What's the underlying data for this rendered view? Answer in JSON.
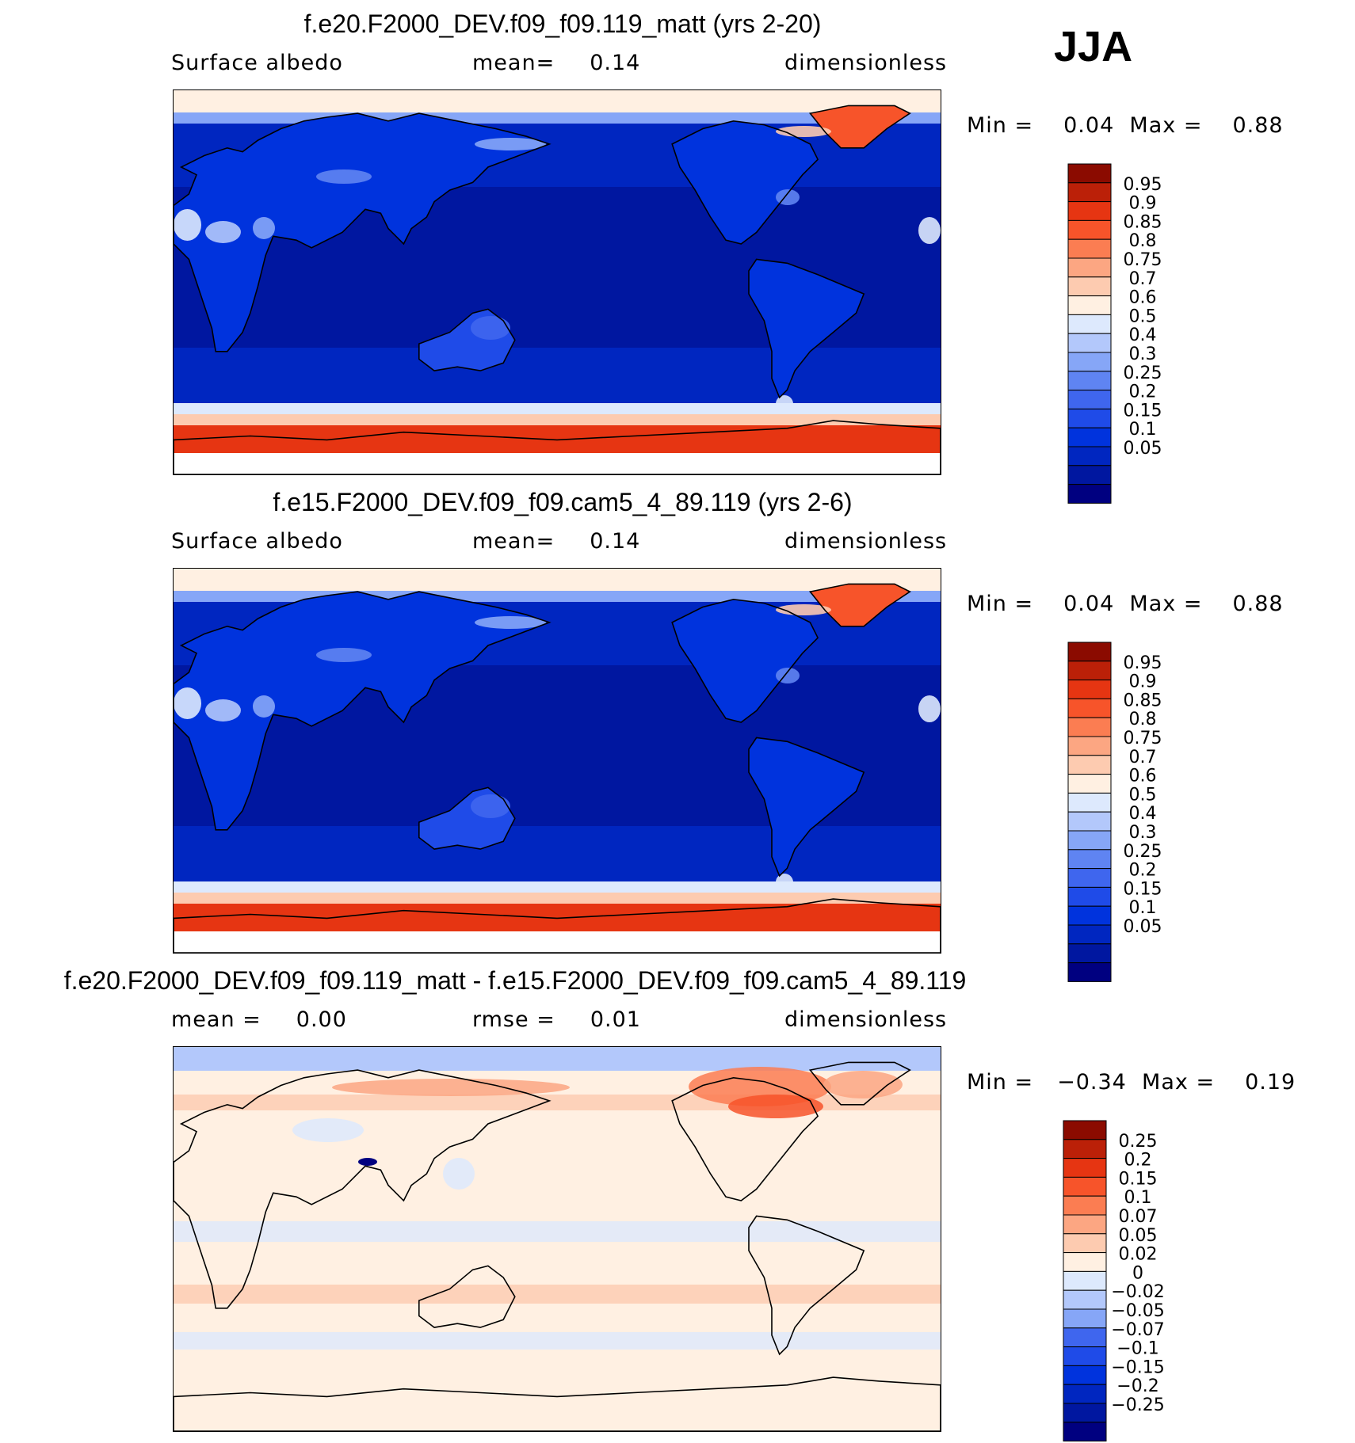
{
  "season": "JJA",
  "colors": {
    "abs": [
      "#000080",
      "#0017a0",
      "#0026c0",
      "#0033dd",
      "#1f4be8",
      "#3f66ee",
      "#5f84f2",
      "#86a6f7",
      "#b3c8fb",
      "#dde9fd",
      "#fff0e2",
      "#fdcbb0",
      "#fca682",
      "#fb7d52",
      "#f7542a",
      "#e63512",
      "#bb2008",
      "#8b0b00"
    ],
    "diff": [
      "#000080",
      "#0017a0",
      "#0026c0",
      "#0033dd",
      "#1f4be8",
      "#3f66ee",
      "#86a6f7",
      "#b3c8fb",
      "#dde9fd",
      "#fff0e2",
      "#fdcbb0",
      "#fca682",
      "#fb7d52",
      "#f7542a",
      "#e63512",
      "#bb2008",
      "#8b0b00"
    ]
  },
  "panels": [
    {
      "title": "f.e20.F2000_DEV.f09_f09.119_matt (yrs 2-20)",
      "left": "Surface  albedo",
      "mid_label": "mean=",
      "mid_value": "0.14",
      "right": "dimensionless",
      "min_label": "Min  =",
      "min_value": "0.04",
      "max_label": "Max  =",
      "max_value": "0.88"
    },
    {
      "title": "f.e15.F2000_DEV.f09_f09.cam5_4_89.119 (yrs 2-6)",
      "left": "Surface  albedo",
      "mid_label": "mean=",
      "mid_value": "0.14",
      "right": "dimensionless",
      "min_label": "Min  =",
      "min_value": "0.04",
      "max_label": "Max  =",
      "max_value": "0.88"
    },
    {
      "title": "f.e20.F2000_DEV.f09_f09.119_matt - f.e15.F2000_DEV.f09_f09.cam5_4_89.119",
      "left": "mean  =",
      "left_value": "0.00",
      "mid_label": "rmse  =",
      "mid_value": "0.01",
      "right": "dimensionless",
      "min_label": "Min  =",
      "min_value": "−0.34",
      "max_label": "Max  =",
      "max_value": "0.19"
    }
  ],
  "chart_data": [
    {
      "type": "heatmap",
      "title": "f.e20.F2000_DEV.f09_f09.119_matt (yrs 2-20)",
      "variable": "Surface albedo",
      "units": "dimensionless",
      "mean": 0.14,
      "min": 0.04,
      "max": 0.88,
      "colorbar_levels": [
        "0.95",
        "0.9",
        "0.85",
        "0.8",
        "0.75",
        "0.7",
        "0.6",
        "0.5",
        "0.4",
        "0.3",
        "0.25",
        "0.2",
        "0.15",
        "0.1",
        "0.05"
      ]
    },
    {
      "type": "heatmap",
      "title": "f.e15.F2000_DEV.f09_f09.cam5_4_89.119 (yrs 2-6)",
      "variable": "Surface albedo",
      "units": "dimensionless",
      "mean": 0.14,
      "min": 0.04,
      "max": 0.88,
      "colorbar_levels": [
        "0.95",
        "0.9",
        "0.85",
        "0.8",
        "0.75",
        "0.7",
        "0.6",
        "0.5",
        "0.4",
        "0.3",
        "0.25",
        "0.2",
        "0.15",
        "0.1",
        "0.05"
      ]
    },
    {
      "type": "heatmap",
      "title": "f.e20.F2000_DEV.f09_f09.119_matt - f.e15.F2000_DEV.f09_f09.cam5_4_89.119",
      "units": "dimensionless",
      "mean": 0.0,
      "rmse": 0.01,
      "min": -0.34,
      "max": 0.19,
      "colorbar_levels": [
        "0.25",
        "0.2",
        "0.15",
        "0.1",
        "0.07",
        "0.05",
        "0.02",
        "0",
        "−0.02",
        "−0.05",
        "−0.07",
        "−0.1",
        "−0.15",
        "−0.2",
        "−0.25"
      ]
    }
  ]
}
